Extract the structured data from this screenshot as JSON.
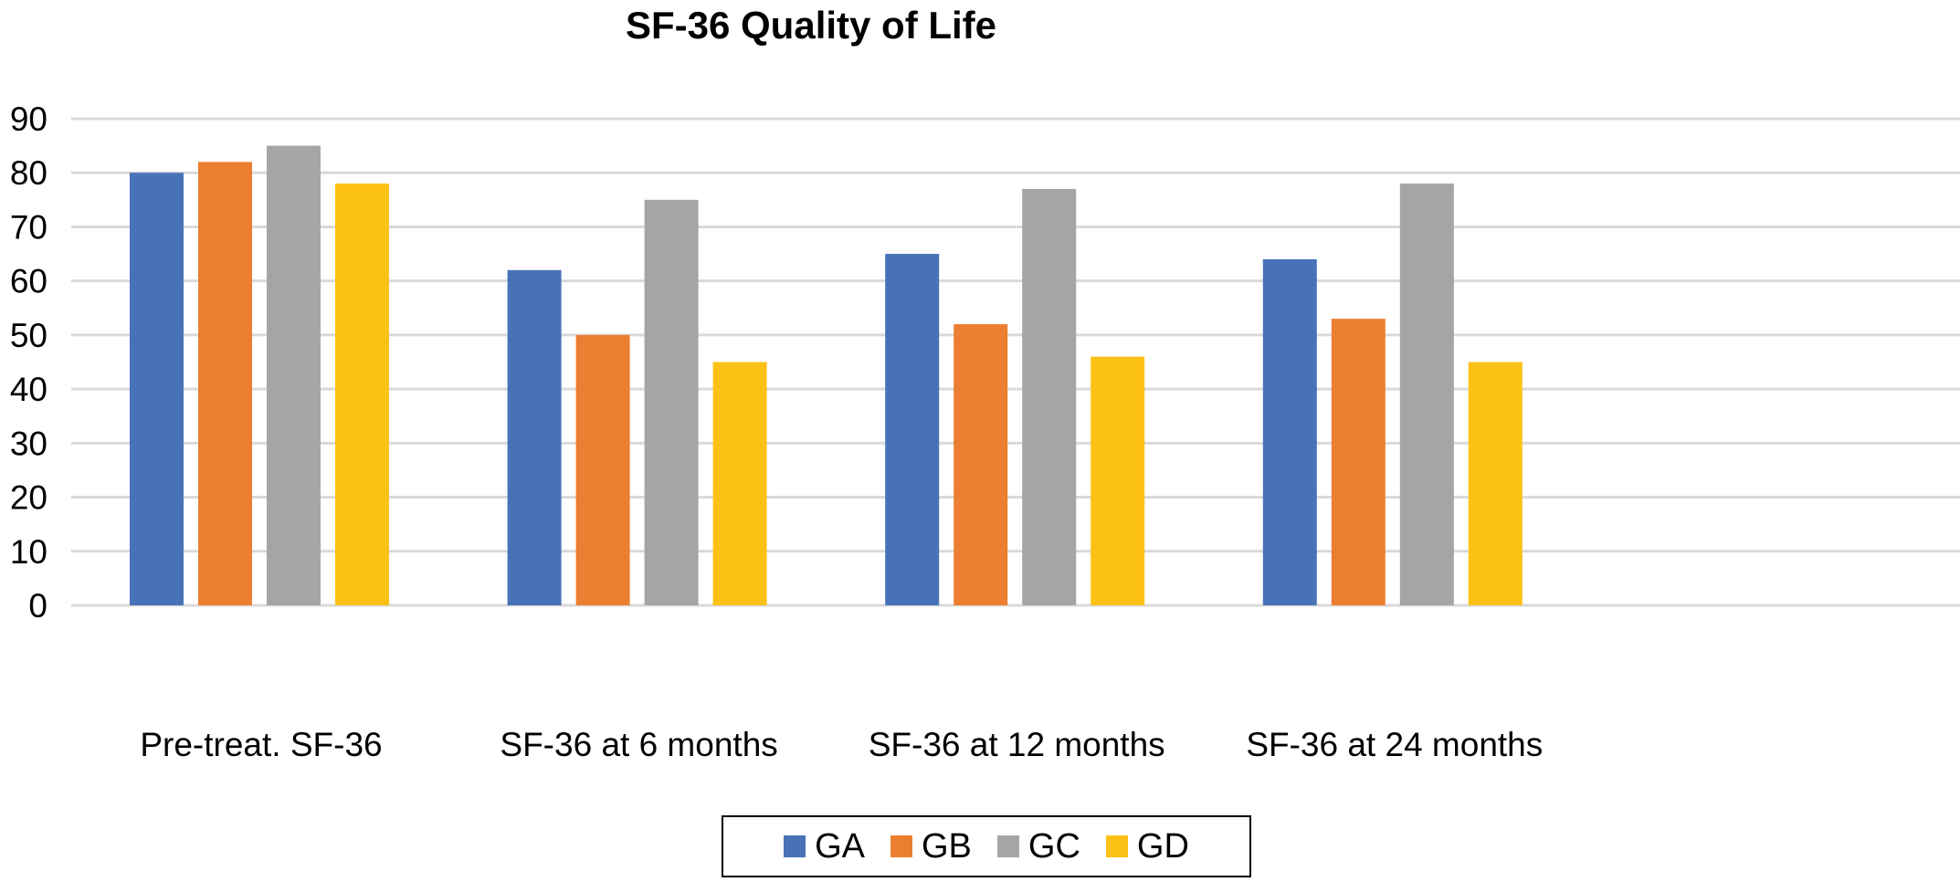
{
  "chart_data": {
    "type": "bar",
    "title": "SF-36 Quality of Life",
    "xlabel": "",
    "ylabel": "",
    "ylim": [
      0,
      90
    ],
    "yticks": [
      0,
      10,
      20,
      30,
      40,
      50,
      60,
      70,
      80,
      90
    ],
    "grid": true,
    "legend_position": "bottom",
    "categories": [
      "Pre-treat. SF-36",
      "SF-36 at 6 months",
      "SF-36 at 12 months",
      "SF-36 at 24 months"
    ],
    "series": [
      {
        "name": "GA",
        "color": "#4872B8",
        "values": [
          80,
          62,
          65,
          64
        ]
      },
      {
        "name": "GB",
        "color": "#EC7E31",
        "values": [
          82,
          50,
          52,
          53
        ]
      },
      {
        "name": "GC",
        "color": "#A5A5A5",
        "values": [
          85,
          75,
          77,
          78
        ]
      },
      {
        "name": "GD",
        "color": "#FCC115",
        "values": [
          78,
          45,
          46,
          45
        ]
      }
    ]
  }
}
